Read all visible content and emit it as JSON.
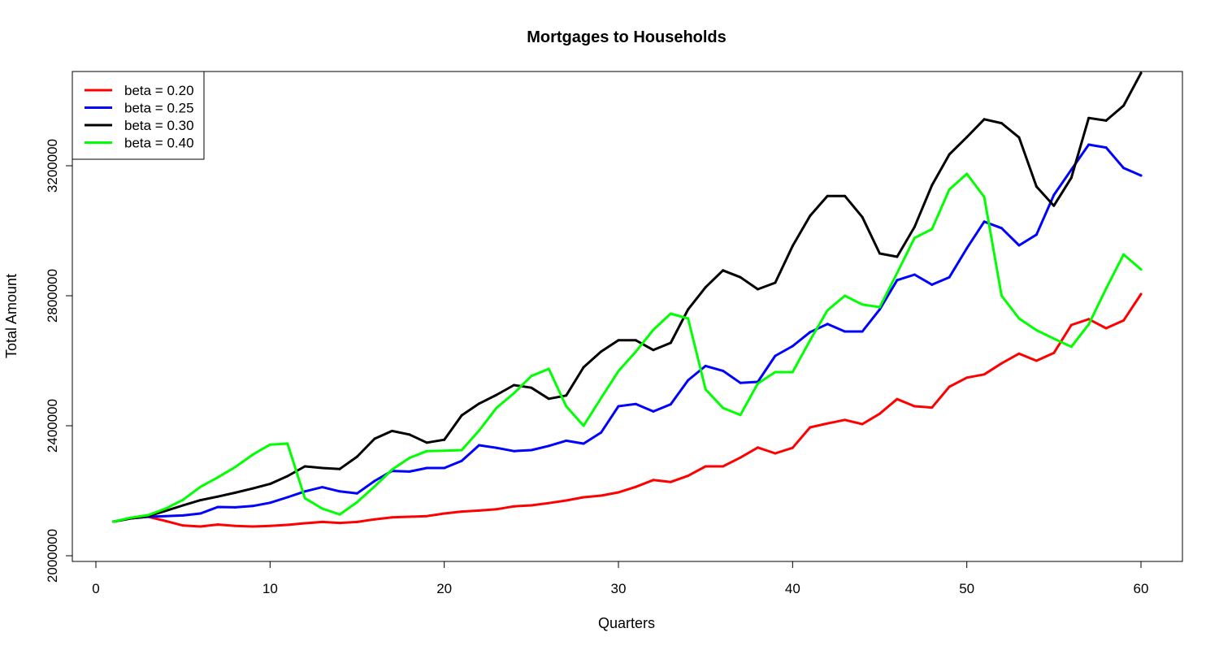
{
  "chart_data": {
    "type": "line",
    "title": "Mortgages to Households",
    "xlabel": "Quarters",
    "ylabel": "Total Amount",
    "xlim": [
      1,
      60
    ],
    "ylim": [
      2000000,
      3440000
    ],
    "x_ticks": [
      0,
      10,
      20,
      30,
      40,
      50,
      60
    ],
    "y_ticks": [
      2000000,
      2400000,
      2800000,
      3200000
    ],
    "legend_position": "top-left",
    "x": [
      1,
      2,
      3,
      4,
      5,
      6,
      7,
      8,
      9,
      10,
      11,
      12,
      13,
      14,
      15,
      16,
      17,
      18,
      19,
      20,
      21,
      22,
      23,
      24,
      25,
      26,
      27,
      28,
      29,
      30,
      31,
      32,
      33,
      34,
      35,
      36,
      37,
      38,
      39,
      40,
      41,
      42,
      43,
      44,
      45,
      46,
      47,
      48,
      49,
      50,
      51,
      52,
      53,
      54,
      55,
      56,
      57,
      58,
      59,
      60
    ],
    "series": [
      {
        "name": "beta = 0.20",
        "color": "#ff0000",
        "values": [
          2105000,
          2115000,
          2120000,
          2107000,
          2093000,
          2090000,
          2096000,
          2092000,
          2090000,
          2092000,
          2095000,
          2100000,
          2104000,
          2101000,
          2104000,
          2112000,
          2118000,
          2120000,
          2122000,
          2130000,
          2136000,
          2139000,
          2143000,
          2152000,
          2155000,
          2162000,
          2170000,
          2180000,
          2185000,
          2195000,
          2212000,
          2233000,
          2227000,
          2246000,
          2275000,
          2275000,
          2302000,
          2333000,
          2315000,
          2332000,
          2395000,
          2407000,
          2418000,
          2405000,
          2437000,
          2482000,
          2460000,
          2456000,
          2520000,
          2548000,
          2558000,
          2592000,
          2622000,
          2600000,
          2624000,
          2710000,
          2728000,
          2700000,
          2724000,
          2805000
        ]
      },
      {
        "name": "beta = 0.25",
        "color": "#0000ff",
        "values": [
          2105000,
          2115000,
          2120000,
          2122000,
          2124000,
          2130000,
          2150000,
          2149000,
          2153000,
          2163000,
          2180000,
          2198000,
          2211000,
          2198000,
          2192000,
          2230000,
          2261000,
          2259000,
          2270000,
          2270000,
          2292000,
          2340000,
          2332000,
          2322000,
          2325000,
          2338000,
          2354000,
          2345000,
          2379000,
          2460000,
          2467000,
          2444000,
          2466000,
          2540000,
          2584000,
          2569000,
          2532000,
          2535000,
          2615000,
          2645000,
          2688000,
          2713000,
          2690000,
          2690000,
          2758000,
          2848000,
          2865000,
          2834000,
          2857000,
          2946000,
          3028000,
          3008000,
          2955000,
          2988000,
          3110000,
          3188000,
          3265000,
          3256000,
          3193000,
          3170000
        ]
      },
      {
        "name": "beta = 0.30",
        "color": "#000000",
        "values": [
          2105000,
          2115000,
          2122000,
          2138000,
          2155000,
          2171000,
          2182000,
          2194000,
          2207000,
          2221000,
          2245000,
          2275000,
          2270000,
          2267000,
          2305000,
          2360000,
          2384000,
          2373000,
          2348000,
          2357000,
          2432000,
          2468000,
          2495000,
          2525000,
          2517000,
          2483000,
          2493000,
          2580000,
          2628000,
          2663000,
          2663000,
          2633000,
          2655000,
          2758000,
          2826000,
          2878000,
          2857000,
          2820000,
          2840000,
          2953000,
          3046000,
          3107000,
          3107000,
          3042000,
          2930000,
          2920000,
          3012000,
          3140000,
          3235000,
          3288000,
          3343000,
          3331000,
          3287000,
          3136000,
          3077000,
          3163000,
          3347000,
          3339000,
          3385000,
          3485000
        ]
      },
      {
        "name": "beta = 0.40",
        "color": "#00ff00",
        "values": [
          2105000,
          2117000,
          2125000,
          2145000,
          2172000,
          2212000,
          2241000,
          2273000,
          2311000,
          2342000,
          2345000,
          2177000,
          2145000,
          2127000,
          2165000,
          2213000,
          2265000,
          2301000,
          2322000,
          2323000,
          2325000,
          2385000,
          2455000,
          2500000,
          2553000,
          2575000,
          2460000,
          2400000,
          2485000,
          2568000,
          2628000,
          2695000,
          2745000,
          2730000,
          2512000,
          2455000,
          2433000,
          2530000,
          2565000,
          2565000,
          2663000,
          2755000,
          2800000,
          2773000,
          2765000,
          2870000,
          2978000,
          3005000,
          3127000,
          3175000,
          3104000,
          2800000,
          2730000,
          2694000,
          2668000,
          2643000,
          2712000,
          2822000,
          2927000,
          2881000
        ]
      }
    ]
  }
}
